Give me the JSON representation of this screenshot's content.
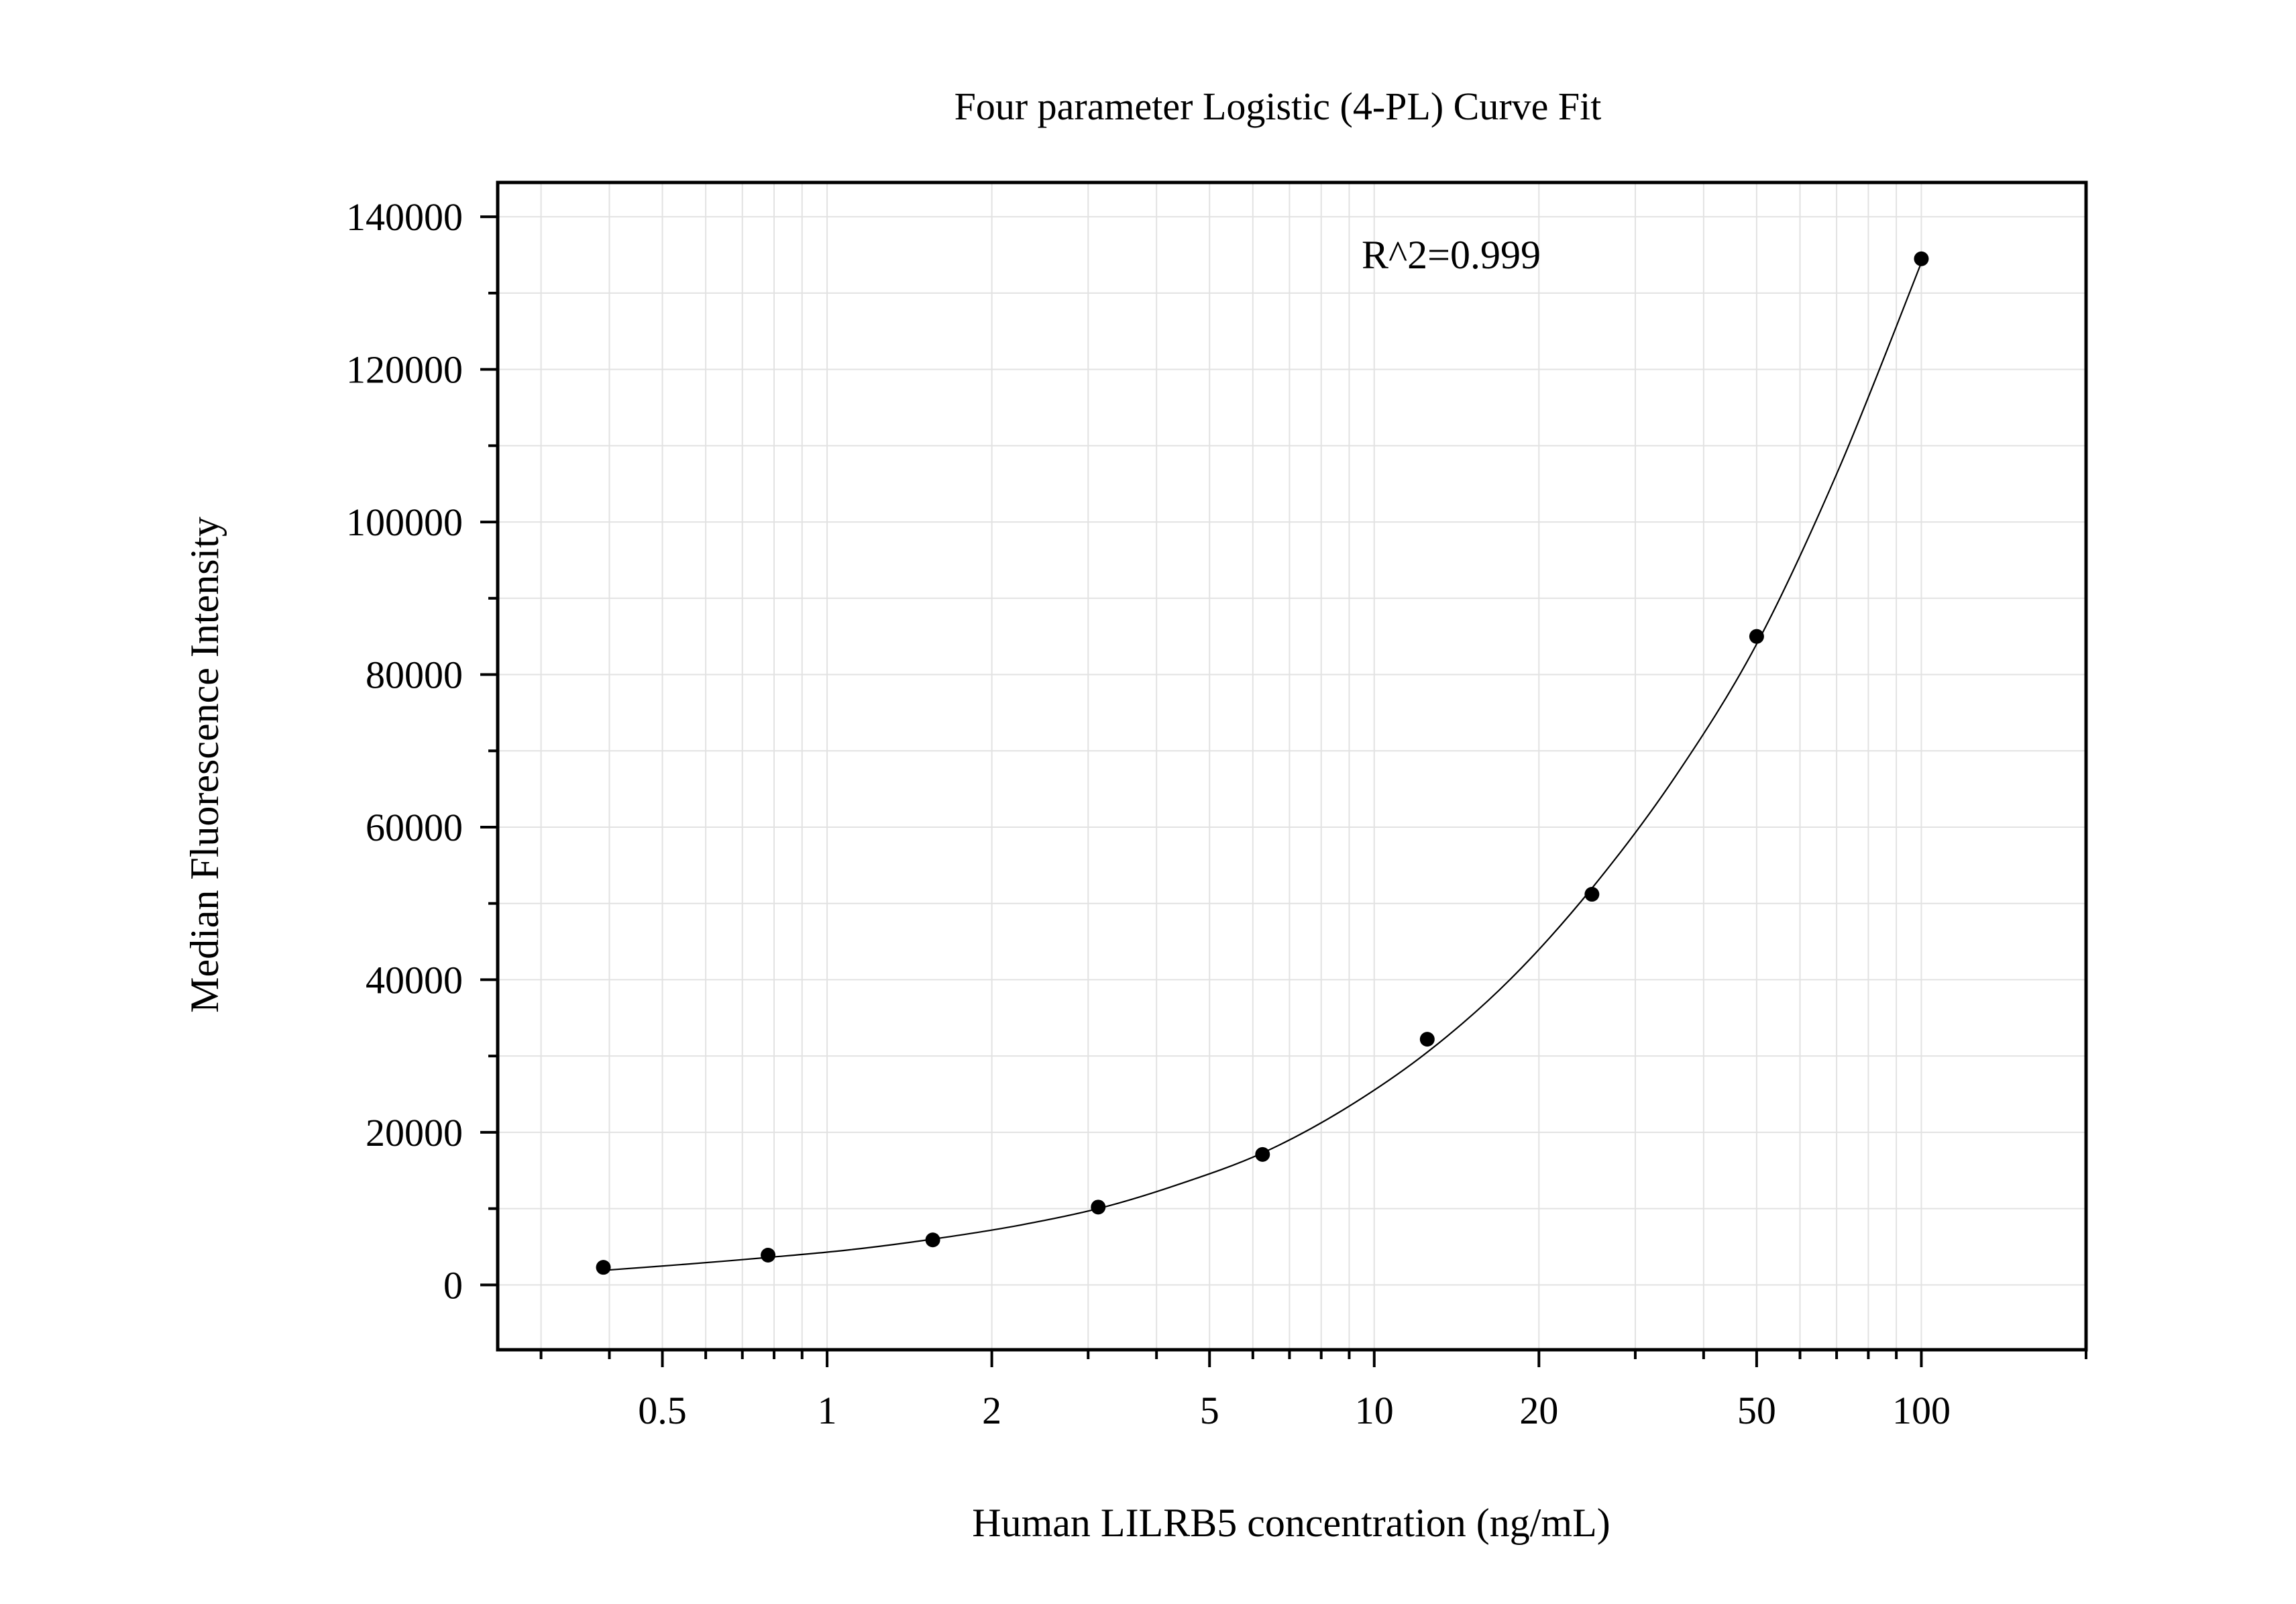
{
  "chart_data": {
    "type": "scatter",
    "title": "Four parameter Logistic (4-PL) Curve Fit",
    "xlabel": "Human LILRB5 concentration (ng/mL)",
    "ylabel": "Median Fluorescence Intensity",
    "x_scale": "log",
    "xlim": [
      0.25,
      200
    ],
    "ylim": [
      -8500,
      144500
    ],
    "x_ticks": [
      0.5,
      1,
      2,
      5,
      10,
      20,
      50,
      100
    ],
    "x_tick_labels": [
      "0.5",
      "1",
      "2",
      "5",
      "10",
      "20",
      "50",
      "100"
    ],
    "y_ticks": [
      0,
      20000,
      40000,
      60000,
      80000,
      100000,
      120000,
      140000
    ],
    "y_tick_labels": [
      "0",
      "20000",
      "40000",
      "60000",
      "80000",
      "100000",
      "120000",
      "140000"
    ],
    "grid": true,
    "annotation": "R^2=0.999",
    "series": [
      {
        "points": [
          {
            "x": 0.39,
            "y": 2300
          },
          {
            "x": 0.78,
            "y": 3900
          },
          {
            "x": 1.56,
            "y": 5900
          },
          {
            "x": 3.13,
            "y": 10200
          },
          {
            "x": 6.25,
            "y": 17100
          },
          {
            "x": 12.5,
            "y": 32200
          },
          {
            "x": 25,
            "y": 51200
          },
          {
            "x": 50,
            "y": 85000
          },
          {
            "x": 100,
            "y": 134500
          }
        ]
      }
    ],
    "fit": {
      "model": "4PL",
      "x": [
        0.39,
        0.55,
        0.78,
        1.1,
        1.56,
        2.2,
        3.13,
        4.4,
        6.25,
        8.8,
        12.5,
        17.7,
        25,
        35.4,
        50,
        70.7,
        100
      ],
      "y": [
        1900,
        2700,
        3600,
        4600,
        6000,
        7700,
        10000,
        13200,
        17300,
        23000,
        30500,
        40000,
        52000,
        66500,
        84000,
        107000,
        134000
      ]
    },
    "colors": {
      "points": "#000000",
      "curve": "#000000",
      "grid": "#e2e2e2",
      "frame": "#000000"
    }
  }
}
